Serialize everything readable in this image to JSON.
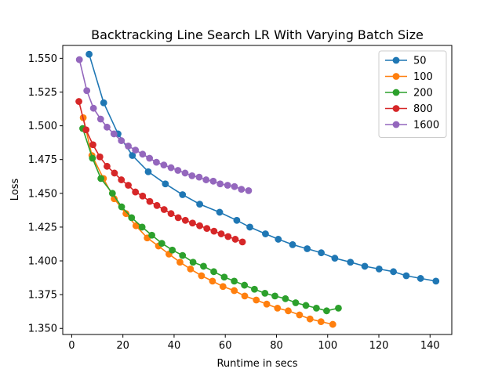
{
  "chart_data": {
    "type": "line",
    "title": "Backtracking Line Search LR With Varying Batch Size",
    "xlabel": "Runtime in secs",
    "ylabel": "Loss",
    "xlim": [
      -3.5,
      148.5
    ],
    "ylim": [
      1.3455,
      1.5595
    ],
    "xticks": [
      {
        "value": 0,
        "label": "0"
      },
      {
        "value": 20,
        "label": "20"
      },
      {
        "value": 40,
        "label": "40"
      },
      {
        "value": 60,
        "label": "60"
      },
      {
        "value": 80,
        "label": "80"
      },
      {
        "value": 100,
        "label": "100"
      },
      {
        "value": 120,
        "label": "120"
      },
      {
        "value": 140,
        "label": "140"
      }
    ],
    "yticks": [
      {
        "value": 1.35,
        "label": "1.350"
      },
      {
        "value": 1.375,
        "label": "1.375"
      },
      {
        "value": 1.4,
        "label": "1.400"
      },
      {
        "value": 1.425,
        "label": "1.425"
      },
      {
        "value": 1.45,
        "label": "1.450"
      },
      {
        "value": 1.475,
        "label": "1.475"
      },
      {
        "value": 1.5,
        "label": "1.500"
      },
      {
        "value": 1.525,
        "label": "1.525"
      },
      {
        "value": 1.55,
        "label": "1.550"
      }
    ],
    "grid": false,
    "legend_position": "top-right",
    "series": [
      {
        "name": "50",
        "color": "#1f77b4",
        "x": [
          6.8,
          12.5,
          18.1,
          23.7,
          29.9,
          36.6,
          43.3,
          50.0,
          57.8,
          64.5,
          69.6,
          75.7,
          80.7,
          86.3,
          92.0,
          97.5,
          102.8,
          108.9,
          114.5,
          120.1,
          125.7,
          130.7,
          136.3,
          142.3
        ],
        "y": [
          1.553,
          1.517,
          1.494,
          1.478,
          1.466,
          1.457,
          1.449,
          1.442,
          1.436,
          1.43,
          1.425,
          1.42,
          1.416,
          1.412,
          1.409,
          1.406,
          1.402,
          1.399,
          1.396,
          1.394,
          1.392,
          1.389,
          1.387,
          1.385
        ]
      },
      {
        "name": "100",
        "color": "#ff7f0e",
        "x": [
          4.5,
          7.9,
          12.4,
          16.6,
          21.2,
          25.1,
          29.5,
          33.9,
          38.0,
          42.3,
          46.4,
          50.7,
          55.0,
          59.1,
          63.5,
          67.6,
          72.1,
          76.2,
          80.4,
          84.6,
          89.0,
          93.1,
          97.4,
          102.0
        ],
        "y": [
          1.506,
          1.478,
          1.461,
          1.446,
          1.435,
          1.426,
          1.417,
          1.411,
          1.405,
          1.399,
          1.394,
          1.389,
          1.385,
          1.381,
          1.378,
          1.374,
          1.371,
          1.368,
          1.365,
          1.363,
          1.36,
          1.357,
          1.355,
          1.353
        ]
      },
      {
        "name": "200",
        "color": "#2ca02c",
        "x": [
          4.3,
          8.1,
          11.4,
          15.9,
          19.5,
          23.4,
          27.5,
          31.3,
          35.2,
          39.3,
          43.3,
          47.4,
          51.5,
          55.5,
          59.6,
          63.5,
          67.5,
          71.4,
          75.5,
          79.4,
          83.5,
          87.5,
          91.5,
          95.6,
          99.6,
          104.2
        ],
        "y": [
          1.498,
          1.476,
          1.461,
          1.45,
          1.44,
          1.432,
          1.425,
          1.419,
          1.413,
          1.408,
          1.404,
          1.399,
          1.396,
          1.392,
          1.388,
          1.385,
          1.382,
          1.379,
          1.376,
          1.374,
          1.372,
          1.369,
          1.367,
          1.365,
          1.363,
          1.365
        ]
      },
      {
        "name": "800",
        "color": "#d62728",
        "x": [
          2.8,
          5.6,
          8.3,
          11.0,
          13.8,
          16.7,
          19.4,
          22.1,
          24.9,
          27.7,
          30.5,
          33.3,
          36.1,
          38.8,
          41.6,
          44.4,
          47.2,
          50.0,
          52.8,
          55.6,
          58.4,
          61.1,
          63.9,
          66.7
        ],
        "y": [
          1.518,
          1.497,
          1.486,
          1.477,
          1.47,
          1.465,
          1.46,
          1.456,
          1.451,
          1.448,
          1.444,
          1.441,
          1.438,
          1.435,
          1.432,
          1.43,
          1.428,
          1.426,
          1.424,
          1.422,
          1.42,
          1.418,
          1.416,
          1.414
        ]
      },
      {
        "name": "1600",
        "color": "#9467bd",
        "x": [
          3.0,
          5.9,
          8.5,
          11.3,
          13.8,
          16.5,
          19.4,
          22.1,
          24.9,
          27.7,
          30.4,
          33.1,
          36.0,
          38.8,
          41.5,
          44.3,
          47.0,
          49.8,
          52.5,
          55.3,
          58.0,
          60.9,
          63.6,
          66.3,
          69.1
        ],
        "y": [
          1.549,
          1.526,
          1.513,
          1.505,
          1.499,
          1.494,
          1.489,
          1.485,
          1.482,
          1.479,
          1.476,
          1.473,
          1.471,
          1.469,
          1.467,
          1.465,
          1.463,
          1.462,
          1.46,
          1.459,
          1.457,
          1.456,
          1.455,
          1.453,
          1.452
        ]
      }
    ]
  }
}
